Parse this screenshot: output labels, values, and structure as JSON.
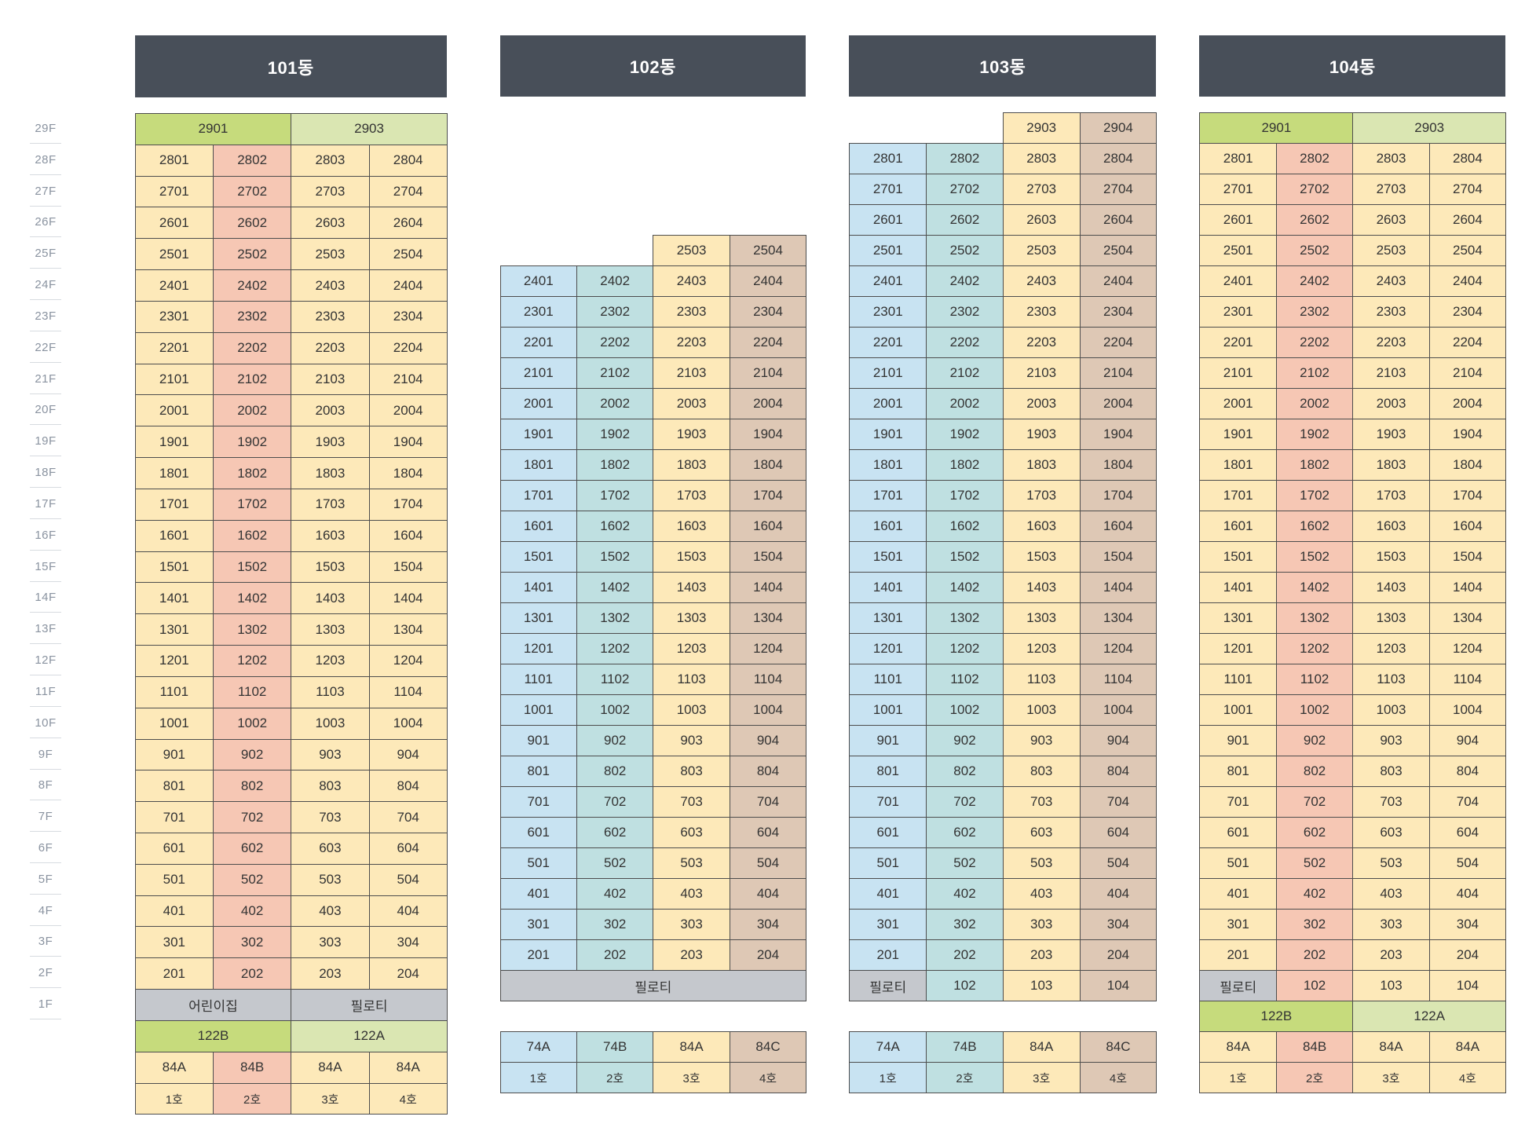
{
  "colors": {
    "yellow": "#fde9b9",
    "salmon": "#f6c7b4",
    "blue": "#c8e3f2",
    "teal": "#bfe0e1",
    "tan": "#dec8b5",
    "green": "#c6db7c",
    "lightgreen": "#dae6b2",
    "gray": "#c5c8cd",
    "header": "#484f59"
  },
  "floors": [
    "29F",
    "28F",
    "27F",
    "26F",
    "25F",
    "24F",
    "23F",
    "22F",
    "21F",
    "20F",
    "19F",
    "18F",
    "17F",
    "16F",
    "15F",
    "14F",
    "13F",
    "12F",
    "11F",
    "10F",
    "9F",
    "8F",
    "7F",
    "6F",
    "5F",
    "4F",
    "3F",
    "2F",
    "1F"
  ],
  "buildings": [
    {
      "name": "101동",
      "top_floor": 28,
      "min_floor": 2,
      "lines": [
        1,
        2,
        3,
        4
      ],
      "colors": [
        "yellow",
        "salmon",
        "yellow",
        "yellow"
      ],
      "top_row": [
        {
          "label": "2901",
          "span": 2,
          "color": "green"
        },
        {
          "label": "2903",
          "span": 2,
          "color": "lightgreen"
        }
      ],
      "ground_row": [
        {
          "label": "어린이집",
          "span": 2,
          "color": "gray"
        },
        {
          "label": "필로티",
          "span": 2,
          "color": "gray"
        }
      ],
      "type_row": [
        {
          "label": "122B",
          "span": 2,
          "color": "green"
        },
        {
          "label": "122A",
          "span": 2,
          "color": "lightgreen"
        }
      ],
      "area_row": [
        "84A",
        "84B",
        "84A",
        "84A"
      ],
      "unit_row": [
        "1호",
        "2호",
        "3호",
        "4호"
      ]
    },
    {
      "name": "102동",
      "top_floor": 24,
      "min_floor": 2,
      "lines": [
        1,
        2,
        3,
        4
      ],
      "colors": [
        "blue",
        "teal",
        "yellow",
        "tan"
      ],
      "top_row": [
        {
          "label": "",
          "span": 2,
          "color": "none"
        },
        {
          "label": "2503",
          "span": 1,
          "color": "yellow"
        },
        {
          "label": "2504",
          "span": 1,
          "color": "tan"
        }
      ],
      "ground_row": [
        {
          "label": "필로티",
          "span": 4,
          "color": "gray"
        }
      ],
      "type_row": null,
      "area_row": [
        "74A",
        "74B",
        "84A",
        "84C"
      ],
      "unit_row": [
        "1호",
        "2호",
        "3호",
        "4호"
      ]
    },
    {
      "name": "103동",
      "top_floor": 28,
      "min_floor": 2,
      "lines": [
        1,
        2,
        3,
        4
      ],
      "colors": [
        "blue",
        "teal",
        "yellow",
        "tan"
      ],
      "top_row": [
        {
          "label": "",
          "span": 2,
          "color": "none"
        },
        {
          "label": "2903",
          "span": 1,
          "color": "yellow"
        },
        {
          "label": "2904",
          "span": 1,
          "color": "tan"
        }
      ],
      "ground_row": [
        {
          "label": "필로티",
          "span": 1,
          "color": "gray"
        },
        {
          "label": "102",
          "span": 1,
          "color": "teal"
        },
        {
          "label": "103",
          "span": 1,
          "color": "yellow"
        },
        {
          "label": "104",
          "span": 1,
          "color": "tan"
        }
      ],
      "type_row": null,
      "area_row": [
        "74A",
        "74B",
        "84A",
        "84C"
      ],
      "unit_row": [
        "1호",
        "2호",
        "3호",
        "4호"
      ]
    },
    {
      "name": "104동",
      "top_floor": 28,
      "min_floor": 2,
      "lines": [
        1,
        2,
        3,
        4
      ],
      "colors": [
        "yellow",
        "salmon",
        "yellow",
        "yellow"
      ],
      "top_row": [
        {
          "label": "2901",
          "span": 2,
          "color": "green"
        },
        {
          "label": "2903",
          "span": 2,
          "color": "lightgreen"
        }
      ],
      "ground_row": [
        {
          "label": "필로티",
          "span": 1,
          "color": "gray"
        },
        {
          "label": "102",
          "span": 1,
          "color": "salmon"
        },
        {
          "label": "103",
          "span": 1,
          "color": "yellow"
        },
        {
          "label": "104",
          "span": 1,
          "color": "yellow"
        }
      ],
      "type_row": [
        {
          "label": "122B",
          "span": 2,
          "color": "green"
        },
        {
          "label": "122A",
          "span": 2,
          "color": "lightgreen"
        }
      ],
      "area_row": [
        "84A",
        "84B",
        "84A",
        "84A"
      ],
      "unit_row": [
        "1호",
        "2호",
        "3호",
        "4호"
      ]
    }
  ]
}
